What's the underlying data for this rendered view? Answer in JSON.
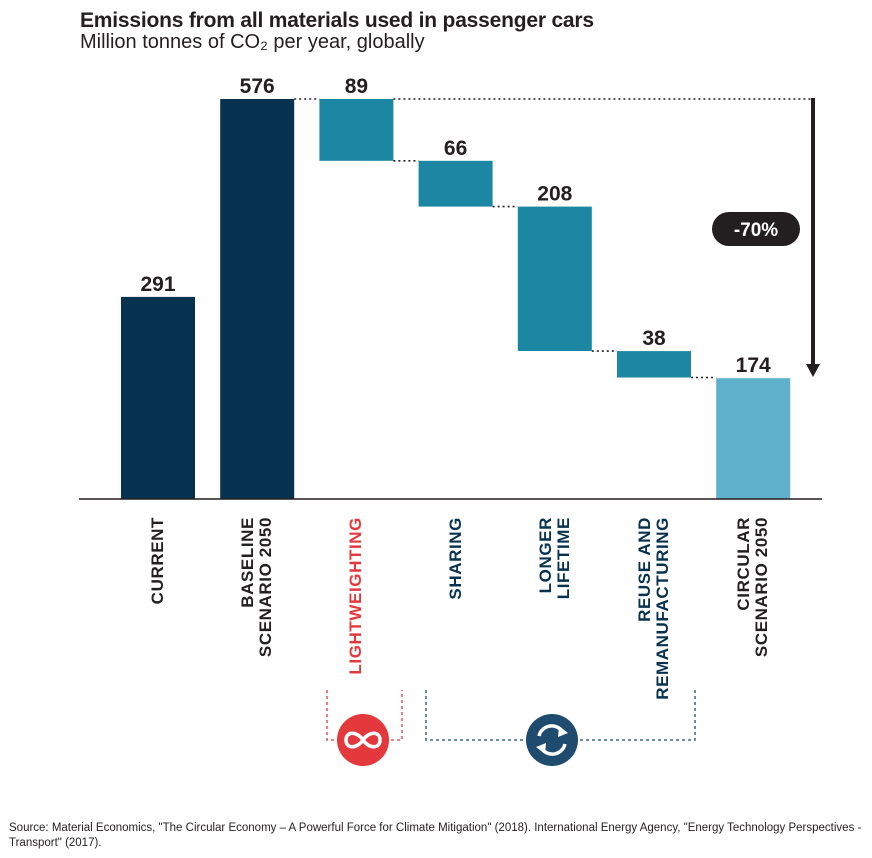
{
  "title": "Emissions from all materials used in passenger cars",
  "subtitle": "Million tonnes of CO₂ per year, globally",
  "source": "Source: Material Economics, \"The Circular Economy – A Powerful Force for Climate Mitigation\" (2018).  International Energy Agency, \"Energy Technology Perspectives - Transport\" (2017).",
  "reduction_label": "-70%",
  "colors": {
    "dark_navy": "#06324f",
    "teal": "#1c87a3",
    "light_teal": "#5fb0cb",
    "red": "#e4393c",
    "navy_icon": "#1e4b6e",
    "text": "#231f20"
  },
  "icons": [
    "infinity-icon",
    "circular-arrows-icon"
  ],
  "chart_data": {
    "type": "waterfall",
    "title": "Emissions from all materials used in passenger cars",
    "ylabel": "Million tonnes of CO₂ per year, globally",
    "ylim": [
      0,
      576
    ],
    "categories": [
      [
        "CURRENT"
      ],
      [
        "BASELINE",
        "SCENARIO 2050"
      ],
      [
        "LIGHTWEIGHTING"
      ],
      [
        "SHARING"
      ],
      [
        "LONGER",
        "LIFETIME"
      ],
      [
        "REUSE AND",
        "REMANUFACTURING"
      ],
      [
        "CIRCULAR",
        "SCENARIO 2050"
      ]
    ],
    "bars": [
      {
        "label": "291",
        "value": 291,
        "kind": "total",
        "color": "#06324f"
      },
      {
        "label": "576",
        "value": 576,
        "kind": "total",
        "color": "#06324f"
      },
      {
        "label": "89",
        "value": -89,
        "kind": "delta",
        "color": "#1c87a3"
      },
      {
        "label": "66",
        "value": -66,
        "kind": "delta",
        "color": "#1c87a3"
      },
      {
        "label": "208",
        "value": -208,
        "kind": "delta",
        "color": "#1c87a3"
      },
      {
        "label": "38",
        "value": -38,
        "kind": "delta",
        "color": "#1c87a3"
      },
      {
        "label": "174",
        "value": 174,
        "kind": "total",
        "color": "#5fb0cb"
      }
    ],
    "label_colors": [
      "#231f20",
      "#231f20",
      "#e4393c",
      "#06324f",
      "#06324f",
      "#06324f",
      "#231f20"
    ],
    "annotation": "-70%"
  }
}
